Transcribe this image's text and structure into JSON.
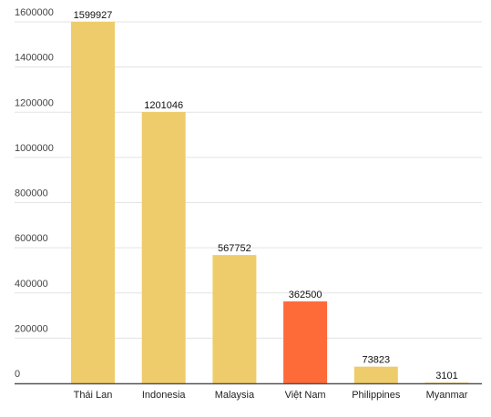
{
  "chart_data": {
    "type": "bar",
    "categories": [
      "Thái Lan",
      "Indonesia",
      "Malaysia",
      "Việt Nam",
      "Philippines",
      "Myanmar"
    ],
    "values": [
      1599927,
      1201046,
      567752,
      362500,
      73823,
      3101
    ],
    "value_labels": [
      "1599927",
      "1201046",
      "567752",
      "362500",
      "73823",
      "3101"
    ],
    "highlight_index": 3,
    "ylim": [
      0,
      1600000
    ],
    "yticks": [
      0,
      200000,
      400000,
      600000,
      800000,
      1000000,
      1200000,
      1400000,
      1600000
    ],
    "ytick_labels": [
      "0",
      "200000",
      "400000",
      "600000",
      "800000",
      "1000000",
      "1200000",
      "1400000",
      "1600000"
    ],
    "grid": true,
    "legend": "none",
    "colors": {
      "bar": "#efcc6b",
      "highlight": "#ff6a39",
      "grid": "#e3e3e3",
      "axis": "#555555"
    }
  }
}
